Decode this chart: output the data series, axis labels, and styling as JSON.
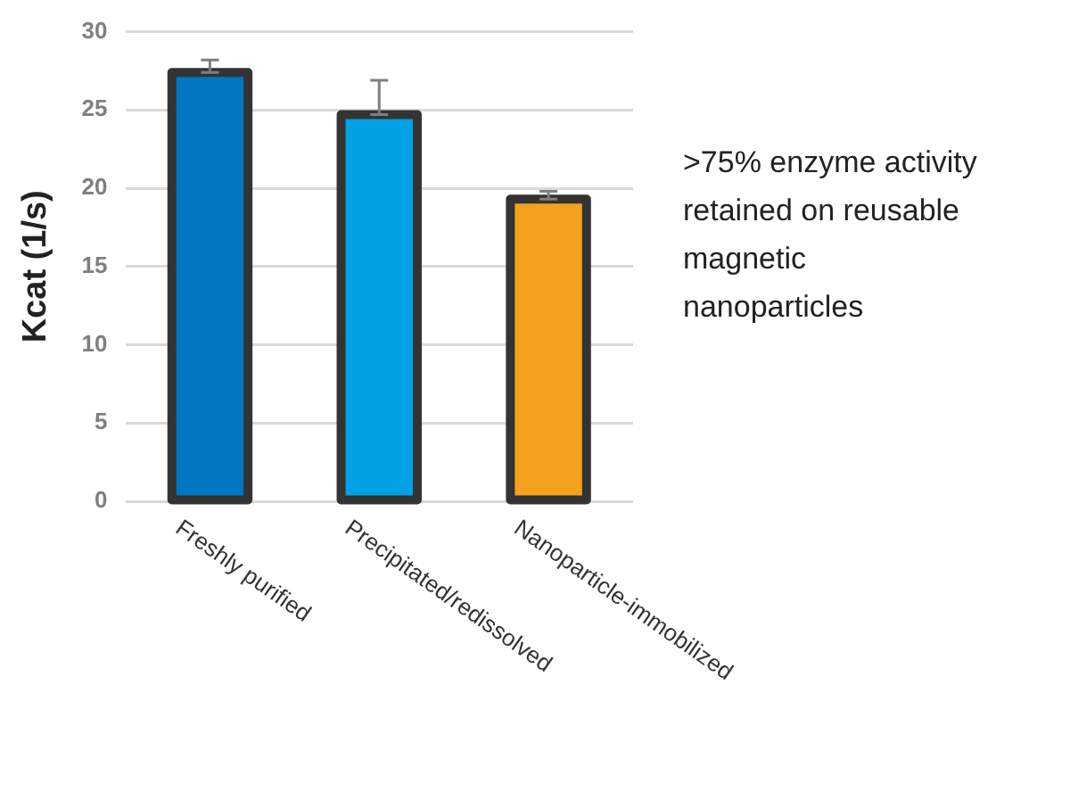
{
  "chart_data": {
    "type": "bar",
    "ylabel": "Kcat (1/s)",
    "categories": [
      "Freshly purified",
      "Precipitated/redissolved",
      "Nanoparticle-immobilized"
    ],
    "values": [
      27.4,
      24.7,
      19.3
    ],
    "colors": [
      "#0077c0",
      "#00a2e3",
      "#f4a11d"
    ],
    "errors": [
      [
        27.4,
        28.2
      ],
      [
        24.7,
        26.9
      ],
      [
        19.3,
        19.8
      ]
    ],
    "ylim": [
      0,
      30
    ],
    "yticks": [
      0,
      5,
      10,
      15,
      20,
      25,
      30
    ],
    "grid": "y",
    "legend": false,
    "annotations": [
      ">75% enzyme activity retained on reusable magnetic nanoparticles"
    ]
  }
}
